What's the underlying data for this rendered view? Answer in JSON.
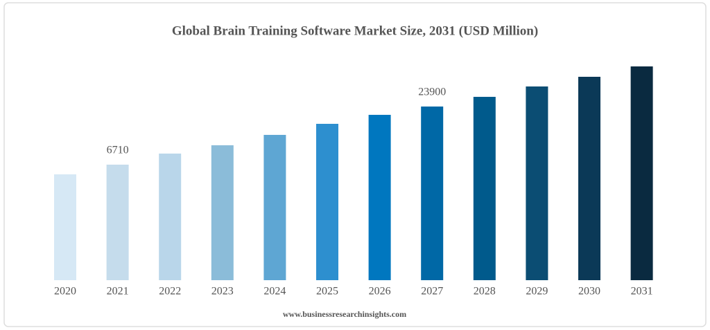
{
  "chart_data": {
    "type": "bar",
    "title": "Global Brain Training Software Market Size, 2031 (USD Million)",
    "categories": [
      "2020",
      "2021",
      "2022",
      "2023",
      "2024",
      "2025",
      "2026",
      "2027",
      "2028",
      "2029",
      "2030",
      "2031"
    ],
    "values": [
      3840,
      6710,
      9980,
      12440,
      15510,
      18780,
      21440,
      23900,
      26760,
      29830,
      32690,
      35760
    ],
    "value_labels": [
      null,
      "6710",
      null,
      null,
      null,
      null,
      null,
      "23900",
      null,
      null,
      null,
      null
    ],
    "colors": [
      "#d6e8f5",
      "#c5dcec",
      "#b9d6ea",
      "#8bbcd9",
      "#5ea6d3",
      "#2d8fcf",
      "#0077bf",
      "#0068a6",
      "#005a8c",
      "#0b4d73",
      "#0b3957",
      "#0a2a40"
    ],
    "source": "www.businessresearchinsights.com"
  }
}
